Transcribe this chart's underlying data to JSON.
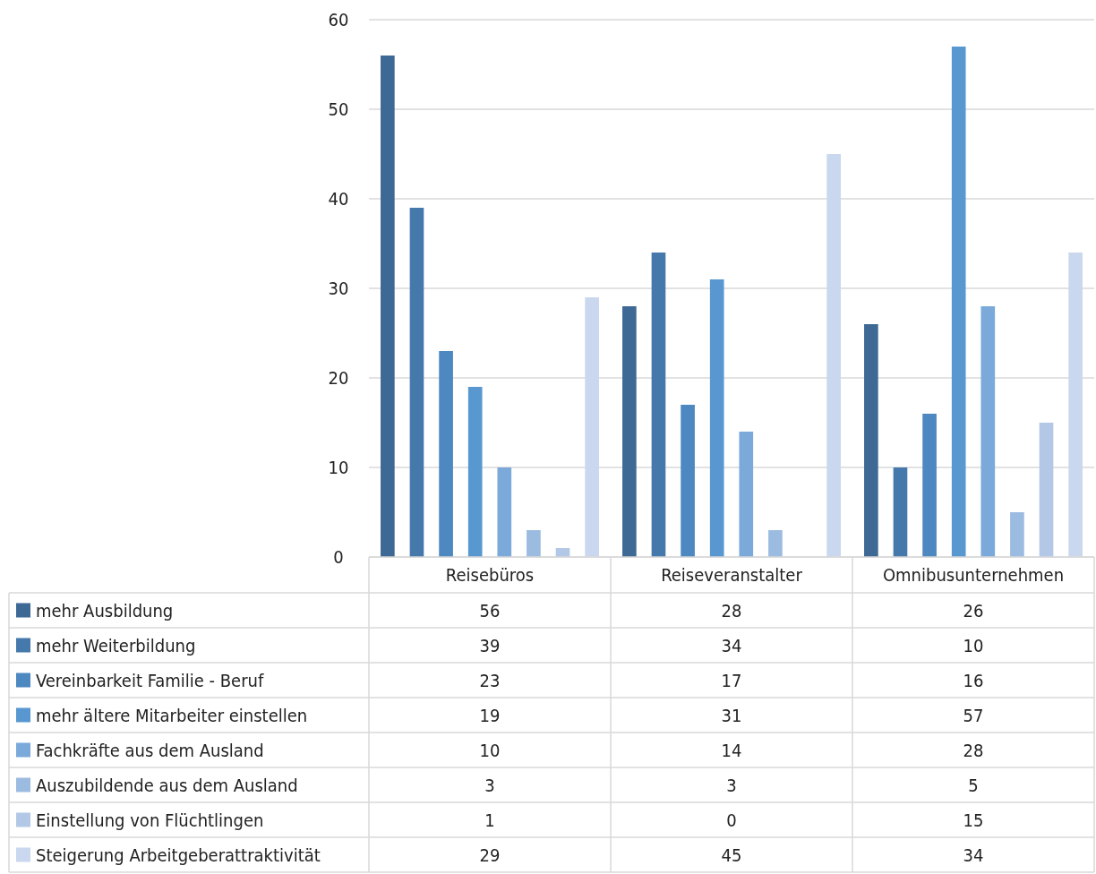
{
  "chart_data": {
    "type": "bar",
    "categories": [
      "Reisebüros",
      "Reiseveranstalter",
      "Omnibusunternehmen"
    ],
    "series": [
      {
        "name": "mehr Ausbildung",
        "color": "#3e6994",
        "values": [
          56,
          28,
          26
        ]
      },
      {
        "name": "mehr Weiterbildung",
        "color": "#4579ac",
        "values": [
          39,
          34,
          10
        ]
      },
      {
        "name": "Vereinbarkeit Familie - Beruf",
        "color": "#4d88c0",
        "values": [
          23,
          17,
          16
        ]
      },
      {
        "name": "mehr ältere Mitarbeiter einstellen",
        "color": "#5897d0",
        "values": [
          19,
          31,
          57
        ]
      },
      {
        "name": "Fachkräfte aus dem Ausland",
        "color": "#7aa9da",
        "values": [
          10,
          14,
          28
        ]
      },
      {
        "name": "Auszubildende aus dem Ausland",
        "color": "#9cbbe1",
        "values": [
          3,
          3,
          5
        ]
      },
      {
        "name": "Einstellung von Flüchtlingen",
        "color": "#b3c8e6",
        "values": [
          1,
          0,
          15
        ]
      },
      {
        "name": "Steigerung Arbeitgeberattraktivität",
        "color": "#c9d8ee",
        "values": [
          29,
          45,
          34
        ]
      }
    ],
    "ylim": [
      0,
      60
    ],
    "yticks": [
      0,
      10,
      20,
      30,
      40,
      50,
      60
    ],
    "grid": "y",
    "legend": "bottom left",
    "data_labels": true
  }
}
